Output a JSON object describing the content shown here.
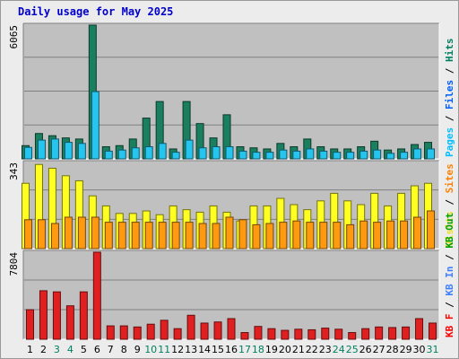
{
  "title": "Daily usage for May 2025",
  "chart_data": [
    {
      "type": "bar",
      "panel": "pages-files-hits",
      "y_max_label": "6065",
      "ylim": [
        0,
        6065
      ],
      "legend": [
        {
          "name": "Pages",
          "color": "#00c0ff"
        },
        {
          "name": "Files",
          "color": "#0060ff"
        },
        {
          "name": "Hits",
          "color": "#008060"
        }
      ],
      "categories": [
        "1",
        "2",
        "3",
        "4",
        "5",
        "6",
        "7",
        "8",
        "9",
        "10",
        "11",
        "12",
        "13",
        "14",
        "15",
        "16",
        "17",
        "18",
        "19",
        "20",
        "21",
        "22",
        "23",
        "24",
        "25",
        "26",
        "27",
        "28",
        "29",
        "30",
        "31"
      ],
      "series": [
        {
          "name": "Hits",
          "color": "#1a7f5f",
          "values": [
            600,
            1150,
            1050,
            950,
            900,
            6065,
            550,
            600,
            900,
            1850,
            2600,
            450,
            2600,
            1600,
            950,
            2000,
            550,
            500,
            450,
            700,
            550,
            900,
            550,
            450,
            450,
            550,
            800,
            400,
            450,
            650,
            750
          ]
        },
        {
          "name": "Pages",
          "color": "#25c5f0",
          "values": [
            520,
            850,
            900,
            750,
            700,
            3050,
            350,
            400,
            500,
            550,
            700,
            300,
            850,
            500,
            550,
            550,
            350,
            300,
            300,
            400,
            350,
            450,
            350,
            300,
            300,
            350,
            400,
            250,
            300,
            450,
            450
          ]
        }
      ]
    },
    {
      "type": "bar",
      "panel": "visits-sites",
      "y_max_label": "343",
      "ylim": [
        0,
        343
      ],
      "legend": [
        {
          "name": "Visits",
          "color": "#f0e020"
        },
        {
          "name": "Sites",
          "color": "#ff8000"
        }
      ],
      "categories": [
        "1",
        "2",
        "3",
        "4",
        "5",
        "6",
        "7",
        "8",
        "9",
        "10",
        "11",
        "12",
        "13",
        "14",
        "15",
        "16",
        "17",
        "18",
        "19",
        "20",
        "21",
        "22",
        "23",
        "24",
        "25",
        "26",
        "27",
        "28",
        "29",
        "30",
        "31"
      ],
      "series": [
        {
          "name": "Visits",
          "color": "#ffff22",
          "values": [
            260,
            335,
            320,
            290,
            270,
            210,
            170,
            140,
            140,
            150,
            135,
            170,
            155,
            145,
            170,
            145,
            110,
            170,
            170,
            200,
            175,
            155,
            190,
            220,
            190,
            175,
            220,
            170,
            220,
            250,
            260
          ]
        },
        {
          "name": "Sites",
          "color": "#ff9a10",
          "values": [
            115,
            115,
            100,
            125,
            125,
            125,
            105,
            105,
            105,
            105,
            105,
            105,
            105,
            100,
            100,
            125,
            115,
            95,
            100,
            105,
            110,
            105,
            105,
            105,
            95,
            110,
            105,
            110,
            110,
            125,
            150
          ]
        }
      ]
    },
    {
      "type": "bar",
      "panel": "kb-f-in-out",
      "y_max_label": "7804",
      "ylim": [
        0,
        7804
      ],
      "legend": [
        {
          "name": "KB F",
          "color": "#ff0000"
        },
        {
          "name": "KB In",
          "color": "#4080ff"
        },
        {
          "name": "KB Out",
          "color": "#00a000"
        }
      ],
      "categories": [
        "1",
        "2",
        "3",
        "4",
        "5",
        "6",
        "7",
        "8",
        "9",
        "10",
        "11",
        "12",
        "13",
        "14",
        "15",
        "16",
        "17",
        "18",
        "19",
        "20",
        "21",
        "22",
        "23",
        "24",
        "25",
        "26",
        "27",
        "28",
        "29",
        "30",
        "31"
      ],
      "series": [
        {
          "name": "KB F",
          "color": "#e02020",
          "values": [
            2650,
            4350,
            4250,
            3000,
            4250,
            7804,
            1200,
            1200,
            1100,
            1350,
            1700,
            950,
            2150,
            1450,
            1550,
            1850,
            600,
            1150,
            950,
            800,
            900,
            850,
            1000,
            900,
            600,
            950,
            1100,
            1050,
            1100,
            1850,
            1450
          ]
        }
      ]
    }
  ],
  "x_labels": [
    {
      "t": "1",
      "c": "#000000"
    },
    {
      "t": "2",
      "c": "#000000"
    },
    {
      "t": "3",
      "c": "#008060"
    },
    {
      "t": "4",
      "c": "#008060"
    },
    {
      "t": "5",
      "c": "#000000"
    },
    {
      "t": "6",
      "c": "#000000"
    },
    {
      "t": "7",
      "c": "#000000"
    },
    {
      "t": "8",
      "c": "#000000"
    },
    {
      "t": "9",
      "c": "#000000"
    },
    {
      "t": "10",
      "c": "#008060"
    },
    {
      "t": "11",
      "c": "#008060"
    },
    {
      "t": "12",
      "c": "#000000"
    },
    {
      "t": "13",
      "c": "#000000"
    },
    {
      "t": "14",
      "c": "#000000"
    },
    {
      "t": "15",
      "c": "#000000"
    },
    {
      "t": "16",
      "c": "#000000"
    },
    {
      "t": "17",
      "c": "#008060"
    },
    {
      "t": "18",
      "c": "#008060"
    },
    {
      "t": "19",
      "c": "#000000"
    },
    {
      "t": "20",
      "c": "#000000"
    },
    {
      "t": "21",
      "c": "#000000"
    },
    {
      "t": "22",
      "c": "#000000"
    },
    {
      "t": "23",
      "c": "#000000"
    },
    {
      "t": "24",
      "c": "#008060"
    },
    {
      "t": "25",
      "c": "#008060"
    },
    {
      "t": "26",
      "c": "#000000"
    },
    {
      "t": "27",
      "c": "#000000"
    },
    {
      "t": "28",
      "c": "#000000"
    },
    {
      "t": "29",
      "c": "#000000"
    },
    {
      "t": "30",
      "c": "#000000"
    },
    {
      "t": "31",
      "c": "#008060"
    }
  ]
}
